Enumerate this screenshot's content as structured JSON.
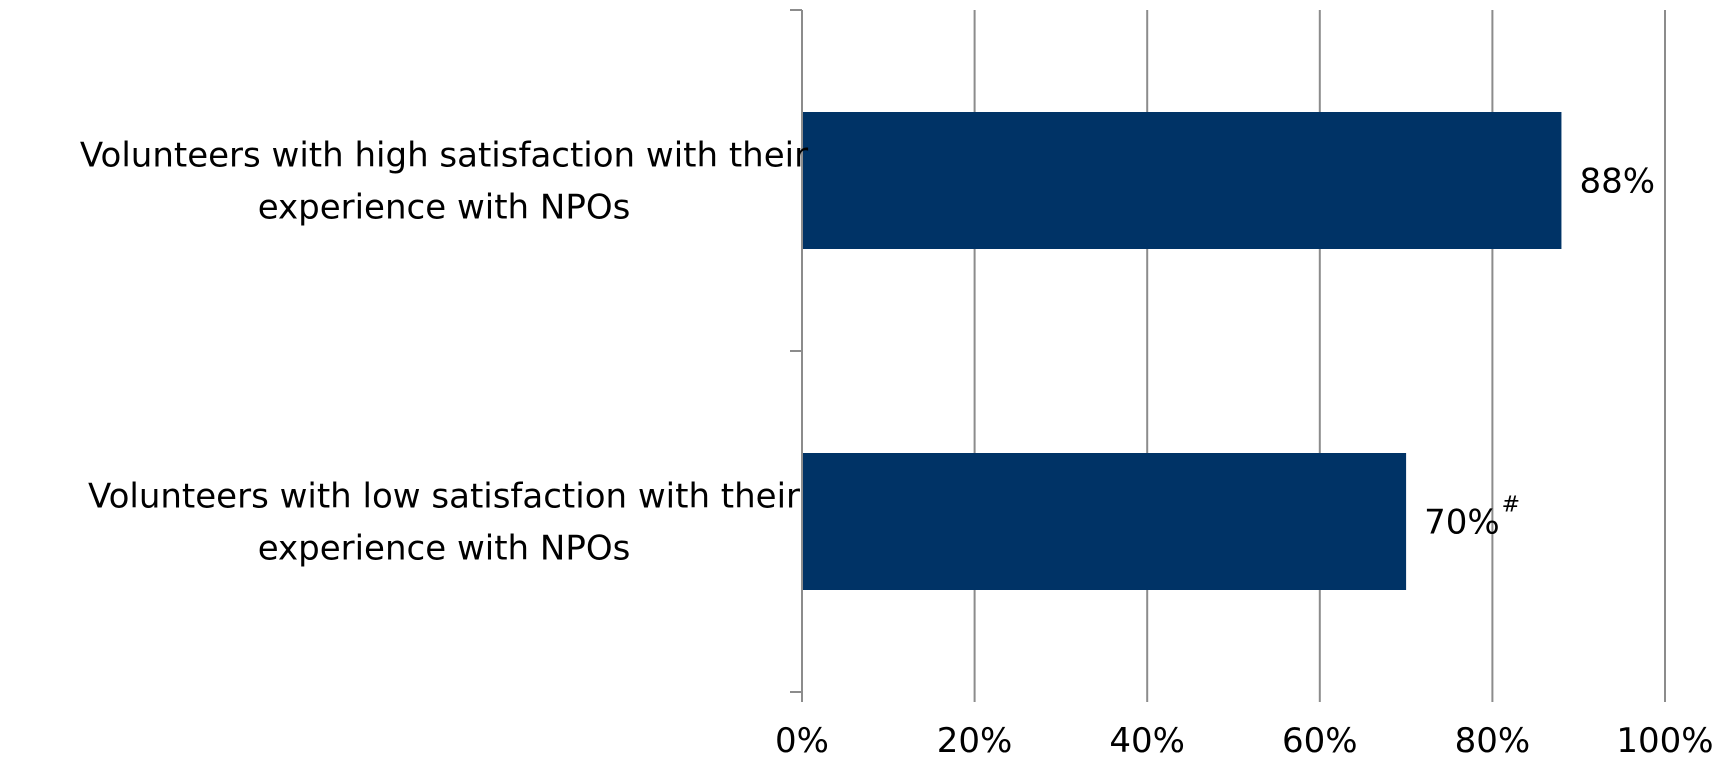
{
  "chart_data": {
    "type": "bar",
    "orientation": "horizontal",
    "categories": [
      [
        "Volunteers with high satisfaction with their",
        "experience with NPOs"
      ],
      [
        "Volunteers with low satisfaction with their",
        "experience with NPOs"
      ]
    ],
    "values": [
      88,
      70
    ],
    "data_labels": [
      "88%",
      "70%"
    ],
    "data_label_footnotes": [
      "",
      "#"
    ],
    "x_ticks": [
      "0%",
      "20%",
      "40%",
      "60%",
      "80%",
      "100%"
    ],
    "xlim": [
      0,
      100
    ],
    "title": "",
    "xlabel": "",
    "ylabel": "",
    "grid": true,
    "legend": "none",
    "bar_color": "#003366"
  }
}
